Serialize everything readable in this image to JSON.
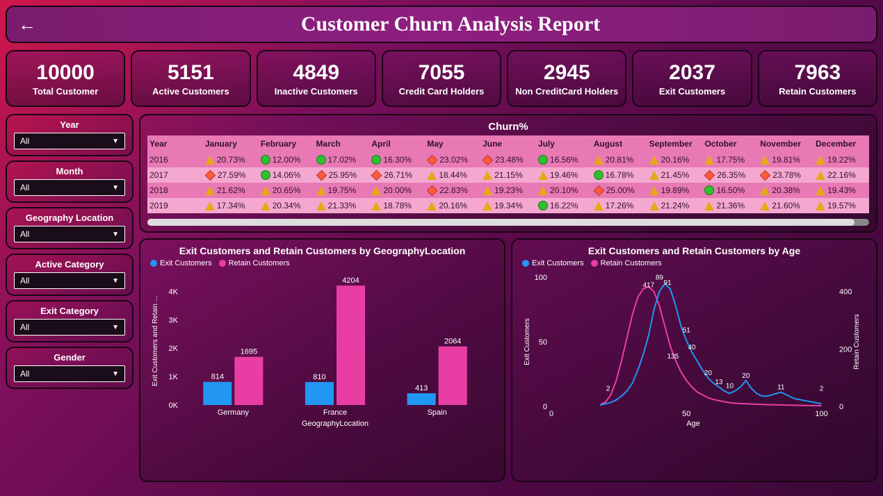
{
  "header": {
    "title": "Customer Churn Analysis Report"
  },
  "kpis": [
    {
      "value": "10000",
      "label": "Total Customer"
    },
    {
      "value": "5151",
      "label": "Active Customers"
    },
    {
      "value": "4849",
      "label": "Inactive Customers"
    },
    {
      "value": "7055",
      "label": "Credit Card Holders"
    },
    {
      "value": "2945",
      "label": "Non CreditCard Holders"
    },
    {
      "value": "2037",
      "label": "Exit Customers"
    },
    {
      "value": "7963",
      "label": "Retain Customers"
    }
  ],
  "filters": [
    {
      "label": "Year",
      "value": "All"
    },
    {
      "label": "Month",
      "value": "All"
    },
    {
      "label": "Geography Location",
      "value": "All"
    },
    {
      "label": "Active Category",
      "value": "All"
    },
    {
      "label": "Exit Category",
      "value": "All"
    },
    {
      "label": "Gender",
      "value": "All"
    }
  ],
  "churn": {
    "title": "Churn%",
    "columns": [
      "Year",
      "January",
      "February",
      "March",
      "April",
      "May",
      "June",
      "July",
      "August",
      "September",
      "October",
      "November",
      "December"
    ],
    "shape_colors": {
      "tri": "#e6a817",
      "circ": "#2fbf2f",
      "dia": "#ff5a3c"
    },
    "header_bg": "#e879b5",
    "row_odd_bg": "#f4a8d0",
    "row_even_bg": "#e879b5",
    "rows": [
      {
        "year": "2016",
        "cells": [
          {
            "s": "tri",
            "v": "20.73%"
          },
          {
            "s": "circ",
            "v": "12.00%"
          },
          {
            "s": "circ",
            "v": "17.02%"
          },
          {
            "s": "circ",
            "v": "16.30%"
          },
          {
            "s": "dia",
            "v": "23.02%"
          },
          {
            "s": "dia",
            "v": "23.48%"
          },
          {
            "s": "circ",
            "v": "16.56%"
          },
          {
            "s": "tri",
            "v": "20.81%"
          },
          {
            "s": "tri",
            "v": "20.16%"
          },
          {
            "s": "tri",
            "v": "17.75%"
          },
          {
            "s": "tri",
            "v": "19.81%"
          },
          {
            "s": "tri",
            "v": "19.22%"
          }
        ]
      },
      {
        "year": "2017",
        "cells": [
          {
            "s": "dia",
            "v": "27.59%"
          },
          {
            "s": "circ",
            "v": "14.06%"
          },
          {
            "s": "dia",
            "v": "25.95%"
          },
          {
            "s": "dia",
            "v": "26.71%"
          },
          {
            "s": "tri",
            "v": "18.44%"
          },
          {
            "s": "tri",
            "v": "21.15%"
          },
          {
            "s": "tri",
            "v": "19.46%"
          },
          {
            "s": "circ",
            "v": "16.78%"
          },
          {
            "s": "tri",
            "v": "21.45%"
          },
          {
            "s": "dia",
            "v": "26.35%"
          },
          {
            "s": "dia",
            "v": "23.78%"
          },
          {
            "s": "tri",
            "v": "22.16%"
          }
        ]
      },
      {
        "year": "2018",
        "cells": [
          {
            "s": "tri",
            "v": "21.62%"
          },
          {
            "s": "tri",
            "v": "20.65%"
          },
          {
            "s": "tri",
            "v": "19.75%"
          },
          {
            "s": "tri",
            "v": "20.00%"
          },
          {
            "s": "dia",
            "v": "22.83%"
          },
          {
            "s": "tri",
            "v": "19.23%"
          },
          {
            "s": "tri",
            "v": "20.10%"
          },
          {
            "s": "dia",
            "v": "25.00%"
          },
          {
            "s": "tri",
            "v": "19.89%"
          },
          {
            "s": "circ",
            "v": "16.50%"
          },
          {
            "s": "tri",
            "v": "20.38%"
          },
          {
            "s": "tri",
            "v": "19.43%"
          }
        ]
      },
      {
        "year": "2019",
        "cells": [
          {
            "s": "tri",
            "v": "17.34%"
          },
          {
            "s": "tri",
            "v": "20.34%"
          },
          {
            "s": "tri",
            "v": "21.33%"
          },
          {
            "s": "tri",
            "v": "18.78%"
          },
          {
            "s": "tri",
            "v": "20.16%"
          },
          {
            "s": "tri",
            "v": "19.34%"
          },
          {
            "s": "circ",
            "v": "16.22%"
          },
          {
            "s": "tri",
            "v": "17.26%"
          },
          {
            "s": "tri",
            "v": "21.24%"
          },
          {
            "s": "tri",
            "v": "21.36%"
          },
          {
            "s": "tri",
            "v": "21.60%"
          },
          {
            "s": "tri",
            "v": "19.57%"
          }
        ]
      }
    ]
  },
  "bar_chart": {
    "type": "bar",
    "title": "Exit Customers and Retain Customers by GeographyLocation",
    "legend": [
      "Exit Customers",
      "Retain Customers"
    ],
    "legend_colors": [
      "#2196f3",
      "#e83ea3"
    ],
    "ylabel": "Exit Customers and Retain ...",
    "xlabel": "GeographyLocation",
    "categories": [
      "Germany",
      "France",
      "Spain"
    ],
    "exit": [
      814,
      810,
      413
    ],
    "retain": [
      1695,
      4204,
      2064
    ],
    "ylim": [
      0,
      4500
    ],
    "yticks": [
      "0K",
      "1K",
      "2K",
      "3K",
      "4K"
    ],
    "bar_colors": [
      "#2196f3",
      "#e83ea3"
    ],
    "label_fontsize": 11,
    "background": "transparent"
  },
  "line_chart": {
    "type": "line",
    "title": "Exit Customers and Retain Customers by Age",
    "legend": [
      "Exit Customers",
      "Retain Customers"
    ],
    "legend_colors": [
      "#2196f3",
      "#e83ea3"
    ],
    "ylabel_left": "Exit Customers",
    "ylabel_right": "Retain Customers",
    "xlabel": "Age",
    "xlim": [
      0,
      105
    ],
    "xticks": [
      0,
      50,
      100
    ],
    "ylim_left": [
      0,
      100
    ],
    "yticks_left": [
      0,
      50,
      100
    ],
    "ylim_right": [
      0,
      450
    ],
    "yticks_right": [
      0,
      200,
      400
    ],
    "labels": [
      {
        "x": 36,
        "y": 90,
        "t": "417"
      },
      {
        "x": 40,
        "y": 96,
        "t": "89"
      },
      {
        "x": 43,
        "y": 92,
        "t": "91"
      },
      {
        "x": 50,
        "y": 55,
        "t": "51"
      },
      {
        "x": 45,
        "y": 35,
        "t": "135"
      },
      {
        "x": 52,
        "y": 42,
        "t": "40"
      },
      {
        "x": 58,
        "y": 22,
        "t": "20"
      },
      {
        "x": 62,
        "y": 15,
        "t": "13"
      },
      {
        "x": 66,
        "y": 12,
        "t": "10"
      },
      {
        "x": 72,
        "y": 20,
        "t": "20"
      },
      {
        "x": 85,
        "y": 11,
        "t": "11"
      },
      {
        "x": 100,
        "y": 10,
        "t": "2"
      },
      {
        "x": 21,
        "y": 10,
        "t": "2"
      }
    ],
    "exit_series": [
      [
        18,
        1
      ],
      [
        20,
        2
      ],
      [
        22,
        3
      ],
      [
        24,
        5
      ],
      [
        26,
        8
      ],
      [
        28,
        12
      ],
      [
        30,
        18
      ],
      [
        32,
        28
      ],
      [
        34,
        40
      ],
      [
        36,
        55
      ],
      [
        38,
        75
      ],
      [
        40,
        89
      ],
      [
        42,
        95
      ],
      [
        44,
        91
      ],
      [
        46,
        78
      ],
      [
        48,
        62
      ],
      [
        50,
        51
      ],
      [
        52,
        42
      ],
      [
        54,
        35
      ],
      [
        56,
        28
      ],
      [
        58,
        22
      ],
      [
        60,
        18
      ],
      [
        62,
        15
      ],
      [
        64,
        12
      ],
      [
        66,
        10
      ],
      [
        68,
        12
      ],
      [
        70,
        15
      ],
      [
        72,
        20
      ],
      [
        74,
        14
      ],
      [
        76,
        10
      ],
      [
        78,
        8
      ],
      [
        80,
        8
      ],
      [
        85,
        11
      ],
      [
        90,
        6
      ],
      [
        95,
        4
      ],
      [
        100,
        2
      ]
    ],
    "retain_series": [
      [
        18,
        5
      ],
      [
        20,
        15
      ],
      [
        22,
        40
      ],
      [
        24,
        90
      ],
      [
        26,
        160
      ],
      [
        28,
        240
      ],
      [
        30,
        320
      ],
      [
        32,
        380
      ],
      [
        34,
        410
      ],
      [
        36,
        417
      ],
      [
        38,
        400
      ],
      [
        40,
        350
      ],
      [
        42,
        280
      ],
      [
        44,
        210
      ],
      [
        46,
        160
      ],
      [
        48,
        120
      ],
      [
        50,
        90
      ],
      [
        52,
        68
      ],
      [
        54,
        50
      ],
      [
        56,
        40
      ],
      [
        58,
        30
      ],
      [
        60,
        24
      ],
      [
        62,
        20
      ],
      [
        64,
        16
      ],
      [
        66,
        13
      ],
      [
        68,
        11
      ],
      [
        70,
        10
      ],
      [
        75,
        8
      ],
      [
        80,
        6
      ],
      [
        85,
        5
      ],
      [
        90,
        4
      ],
      [
        95,
        3
      ],
      [
        100,
        2
      ]
    ]
  },
  "colors": {
    "panel_border": "#1a0514",
    "exit": "#2196f3",
    "retain": "#e83ea3"
  }
}
